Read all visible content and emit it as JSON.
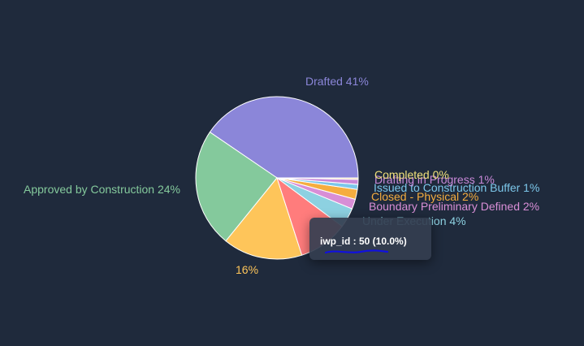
{
  "chart_data": {
    "type": "pie",
    "categories": [
      "Drafted",
      "Approved by Construction",
      "",
      "",
      "Under Execution",
      "Boundary Preliminary Defined",
      "Closed - Physical",
      "Issued to Construction Buffer",
      "Drafting in Progress",
      "Completed"
    ],
    "values": [
      41,
      24,
      16,
      10,
      4,
      2,
      2,
      1,
      1,
      0.3
    ],
    "labels": [
      "Drafted 41%",
      "Approved by Construction 24%",
      "16%",
      "",
      "Under Execution 4%",
      "Boundary Preliminary Defined 2%",
      "Closed - Physical 2%",
      "Issued to Construction Buffer 1%",
      "Drafting in Progress 1%",
      "Completed 0%"
    ],
    "colors": [
      "#8b86d9",
      "#84c99c",
      "#fec55a",
      "#ff7c7c",
      "#8dd1e1",
      "#d88ed6",
      "#f5ad3f",
      "#7cc7ea",
      "#c888d8",
      "#f0d9a0"
    ],
    "label_colors": [
      "#8b86d9",
      "#84c99c",
      "#fec55a",
      "#ff7c7c",
      "#8dd1e1",
      "#d88ed6",
      "#f5ad3f",
      "#7cc7ea",
      "#c888d8",
      "#f0e07a"
    ]
  },
  "tooltip": {
    "text": "iwp_id : 50 (10.0%)",
    "underline_color": "#1010e0"
  }
}
